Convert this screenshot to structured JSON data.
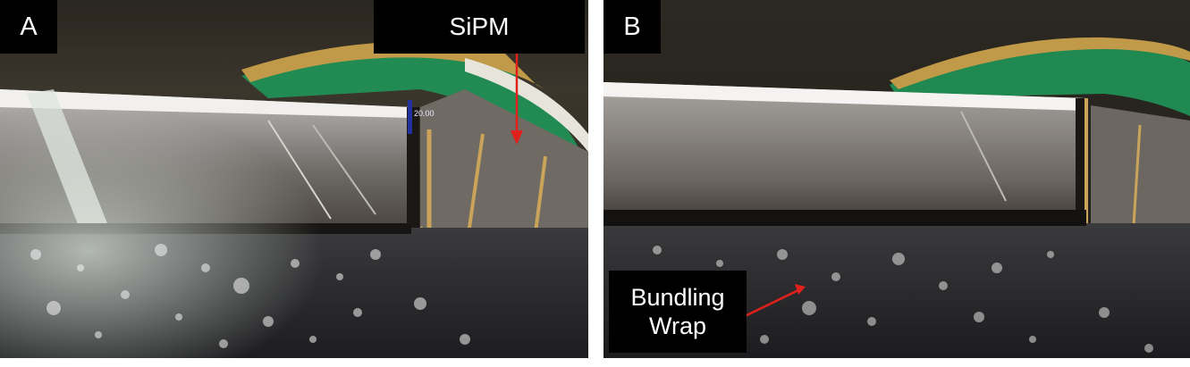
{
  "figure": {
    "panels": [
      {
        "letter": "A",
        "callout": "SiPM",
        "scale_text": "20.00"
      },
      {
        "letter": "B",
        "callout_lines": [
          "Bundling",
          "Wrap"
        ]
      }
    ],
    "colors": {
      "label_bg": "#000000",
      "label_text": "#ffffff",
      "arrow": "#e0201a",
      "pcb_green": "#1e9a5a",
      "gold_frame": "#b08a3a"
    }
  }
}
